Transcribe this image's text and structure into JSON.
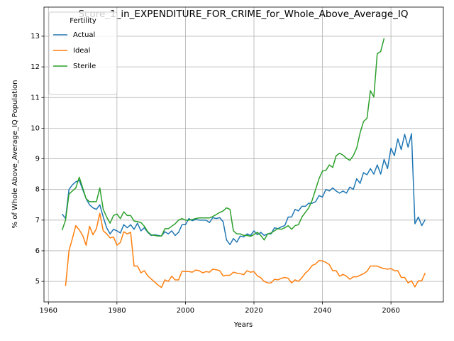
{
  "chart_data": {
    "type": "line",
    "title": "Score_1_in_EXPENDITURE_FOR_CRIME_for_Whole_Above_Average_IQ",
    "xlabel": "Years",
    "ylabel": "% of Whole Above_Average_IQ Population",
    "legend_title": "Fertility",
    "legend_loc": "upper left",
    "grid": true,
    "xlim": [
      1958.7,
      2075.3
    ],
    "xticks": [
      1960,
      1980,
      2000,
      2020,
      2040,
      2060
    ],
    "ylim": [
      4.33,
      13.95
    ],
    "yticks": [
      5,
      6,
      7,
      8,
      9,
      10,
      11,
      12,
      13
    ],
    "x": [
      1964,
      1965,
      1966,
      1967,
      1968,
      1969,
      1970,
      1971,
      1972,
      1973,
      1974,
      1975,
      1976,
      1977,
      1978,
      1979,
      1980,
      1981,
      1982,
      1983,
      1984,
      1985,
      1986,
      1987,
      1988,
      1989,
      1990,
      1991,
      1992,
      1993,
      1994,
      1995,
      1996,
      1997,
      1998,
      1999,
      2000,
      2001,
      2002,
      2003,
      2004,
      2005,
      2006,
      2007,
      2008,
      2009,
      2010,
      2011,
      2012,
      2013,
      2014,
      2015,
      2016,
      2017,
      2018,
      2019,
      2020,
      2021,
      2022,
      2023,
      2024,
      2025,
      2026,
      2027,
      2028,
      2029,
      2030,
      2031,
      2032,
      2033,
      2034,
      2035,
      2036,
      2037,
      2038,
      2039,
      2040,
      2041,
      2042,
      2043,
      2044,
      2045,
      2046,
      2047,
      2048,
      2049,
      2050,
      2051,
      2052,
      2053,
      2054,
      2055,
      2056,
      2057,
      2058,
      2059,
      2060,
      2061,
      2062,
      2063,
      2064,
      2065,
      2066,
      2067,
      2068,
      2069,
      2070
    ],
    "series": [
      {
        "name": "Actual",
        "color": "#1f77b4",
        "values": [
          7.2,
          7.05,
          8.0,
          8.15,
          8.25,
          8.3,
          8.0,
          7.7,
          7.5,
          7.4,
          7.35,
          7.5,
          7.1,
          6.75,
          6.55,
          6.7,
          6.65,
          6.58,
          6.85,
          6.75,
          6.85,
          6.7,
          6.9,
          6.65,
          6.75,
          6.6,
          6.5,
          6.52,
          6.5,
          6.48,
          6.62,
          6.55,
          6.65,
          6.5,
          6.6,
          6.85,
          6.85,
          7.05,
          6.98,
          7.02,
          7.0,
          7.0,
          7.0,
          6.92,
          7.08,
          7.05,
          7.08,
          6.95,
          6.35,
          6.2,
          6.4,
          6.28,
          6.48,
          6.45,
          6.55,
          6.5,
          6.65,
          6.52,
          6.6,
          6.5,
          6.55,
          6.55,
          6.75,
          6.72,
          6.78,
          6.82,
          7.1,
          7.1,
          7.35,
          7.3,
          7.45,
          7.45,
          7.55,
          7.55,
          7.6,
          7.8,
          7.75,
          8.0,
          7.95,
          8.05,
          7.95,
          7.88,
          7.95,
          7.88,
          8.08,
          8.0,
          8.35,
          8.2,
          8.55,
          8.48,
          8.68,
          8.5,
          8.8,
          8.5,
          8.98,
          8.68,
          9.35,
          9.1,
          9.65,
          9.3,
          9.8,
          9.38,
          9.82,
          6.88,
          7.1,
          6.82,
          7.02
        ]
      },
      {
        "name": "Ideal",
        "color": "#ff7f0e",
        "values": [
          null,
          4.85,
          6.0,
          6.4,
          6.82,
          6.68,
          6.5,
          6.18,
          6.8,
          6.52,
          6.72,
          7.22,
          6.65,
          6.55,
          6.42,
          6.45,
          6.18,
          6.27,
          6.62,
          6.55,
          6.6,
          5.5,
          5.5,
          5.28,
          5.35,
          5.18,
          5.08,
          4.98,
          4.88,
          4.8,
          5.05,
          5.0,
          5.17,
          5.05,
          5.05,
          5.33,
          5.32,
          5.32,
          5.3,
          5.37,
          5.35,
          5.28,
          5.32,
          5.3,
          5.4,
          5.38,
          5.35,
          5.18,
          5.2,
          5.2,
          5.3,
          5.27,
          5.25,
          5.22,
          5.35,
          5.3,
          5.32,
          5.18,
          5.12,
          5.0,
          4.95,
          4.95,
          5.07,
          5.05,
          5.1,
          5.13,
          5.1,
          4.95,
          5.05,
          5.0,
          5.12,
          5.27,
          5.37,
          5.52,
          5.57,
          5.68,
          5.67,
          5.62,
          5.55,
          5.35,
          5.35,
          5.17,
          5.23,
          5.17,
          5.07,
          5.15,
          5.15,
          5.2,
          5.25,
          5.33,
          5.5,
          5.5,
          5.5,
          5.45,
          5.42,
          5.4,
          5.42,
          5.35,
          5.35,
          5.13,
          5.13,
          4.95,
          5.02,
          4.82,
          5.02,
          5.02,
          5.28
        ]
      },
      {
        "name": "Sterile",
        "color": "#2ca02c",
        "values": [
          6.67,
          7.0,
          7.85,
          7.95,
          8.05,
          8.4,
          8.05,
          7.7,
          7.6,
          7.6,
          7.6,
          8.05,
          7.35,
          7.1,
          6.9,
          7.15,
          7.2,
          7.05,
          7.27,
          7.15,
          7.15,
          6.97,
          6.95,
          6.92,
          6.8,
          6.62,
          6.52,
          6.5,
          6.48,
          6.48,
          6.72,
          6.72,
          6.8,
          6.88,
          7.0,
          7.05,
          7.0,
          7.0,
          7.02,
          7.05,
          7.07,
          7.07,
          7.07,
          7.07,
          7.12,
          7.18,
          7.25,
          7.3,
          7.4,
          7.35,
          6.65,
          6.55,
          6.55,
          6.5,
          6.5,
          6.47,
          6.53,
          6.6,
          6.5,
          6.35,
          6.55,
          6.58,
          6.65,
          6.72,
          6.7,
          6.75,
          6.82,
          6.7,
          6.82,
          6.85,
          7.1,
          7.25,
          7.4,
          7.65,
          8.0,
          8.35,
          8.6,
          8.62,
          8.8,
          8.72,
          9.1,
          9.18,
          9.12,
          9.02,
          8.95,
          9.1,
          9.35,
          9.85,
          10.22,
          10.32,
          11.22,
          11.02,
          12.43,
          12.5,
          12.93,
          null,
          null,
          null,
          null,
          null,
          null,
          null,
          null,
          null,
          null,
          null,
          null
        ]
      }
    ]
  }
}
